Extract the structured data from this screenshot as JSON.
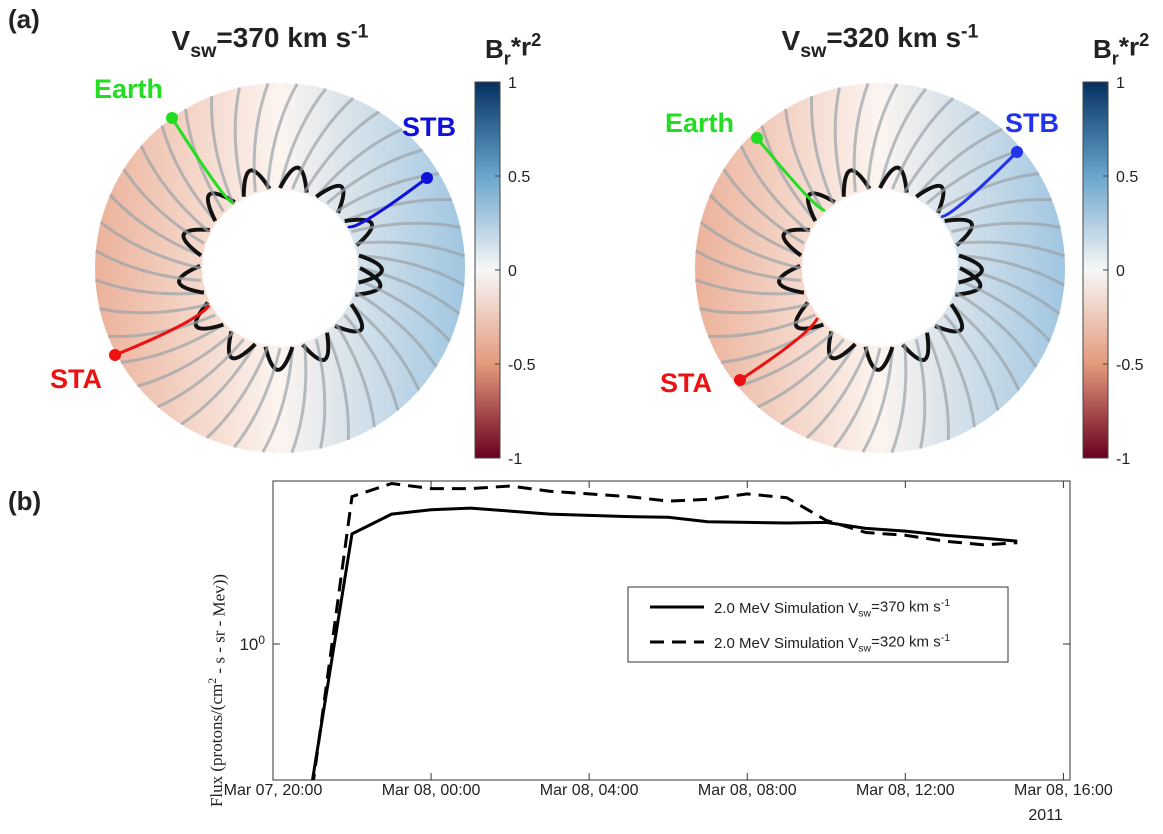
{
  "panel_labels": [
    "(a)",
    "(b)"
  ],
  "maps": [
    {
      "title": "V_{sw}=370 km s^{-1}",
      "labels": [
        "Earth",
        "STB",
        "STA"
      ],
      "colorbar": {
        "label": "B_{r}*r^{2}",
        "clim": [
          -1,
          1
        ],
        "ticks": [
          1,
          0.5,
          0,
          -0.5,
          -1
        ]
      }
    },
    {
      "title": "V_{sw}=320 km s^{-1}",
      "labels": [
        "Earth",
        "STB",
        "STA"
      ],
      "colorbar": {
        "label": "B_{r}*r^{2}",
        "clim": [
          -1,
          1
        ],
        "ticks": [
          1,
          0.5,
          0,
          -0.5,
          -1
        ]
      }
    }
  ],
  "chart_data": {
    "type": "line",
    "ylabel": "Flux (protons/(cm^{2} - s - sr - Mev))",
    "x_note": "2011",
    "x": [
      "2011-03-07T21:00",
      "2011-03-07T22:00",
      "2011-03-07T23:00",
      "2011-03-08T00:00",
      "2011-03-08T01:00",
      "2011-03-08T02:00",
      "2011-03-08T03:00",
      "2011-03-08T04:00",
      "2011-03-08T05:00",
      "2011-03-08T06:00",
      "2011-03-08T07:00",
      "2011-03-08T08:00",
      "2011-03-08T09:00",
      "2011-03-08T10:00",
      "2011-03-08T11:00",
      "2011-03-08T12:00",
      "2011-03-08T13:00",
      "2011-03-08T14:00",
      "2011-03-08T14:50"
    ],
    "series": [
      {
        "name": "2.0 MeV Simulation V_{sw}=370 km s^{-1}",
        "color": "#000000",
        "dash": "solid",
        "values": [
          0.4,
          2.1,
          2.4,
          2.47,
          2.5,
          2.45,
          2.4,
          2.38,
          2.36,
          2.35,
          2.28,
          2.27,
          2.26,
          2.27,
          2.18,
          2.14,
          2.08,
          2.04,
          2.0
        ]
      },
      {
        "name": "2.0 MeV Simulation V_{sw}=320 km s^{-1}",
        "color": "#000000",
        "dash": "dashed",
        "values": [
          0.38,
          2.7,
          2.95,
          2.85,
          2.85,
          2.9,
          2.8,
          2.75,
          2.7,
          2.62,
          2.65,
          2.75,
          2.68,
          2.3,
          2.12,
          2.08,
          2.0,
          1.95,
          1.98
        ]
      }
    ],
    "xlim": [
      "2011-03-07T20:00",
      "2011-03-08T16:10"
    ],
    "xticks": [
      {
        "value": "2011-03-07T20:00",
        "label": "Mar 07, 20:00"
      },
      {
        "value": "2011-03-08T00:00",
        "label": "Mar 08, 00:00"
      },
      {
        "value": "2011-03-08T04:00",
        "label": "Mar 08, 04:00"
      },
      {
        "value": "2011-03-08T08:00",
        "label": "Mar 08, 08:00"
      },
      {
        "value": "2011-03-08T12:00",
        "label": "Mar 08, 12:00"
      },
      {
        "value": "2011-03-08T16:00",
        "label": "Mar 08, 16:00"
      }
    ],
    "ylim": [
      0.4,
      3
    ],
    "yscale": "log",
    "yticks": [
      {
        "value": 1,
        "label": "10^{0}"
      }
    ],
    "legend": "east"
  }
}
